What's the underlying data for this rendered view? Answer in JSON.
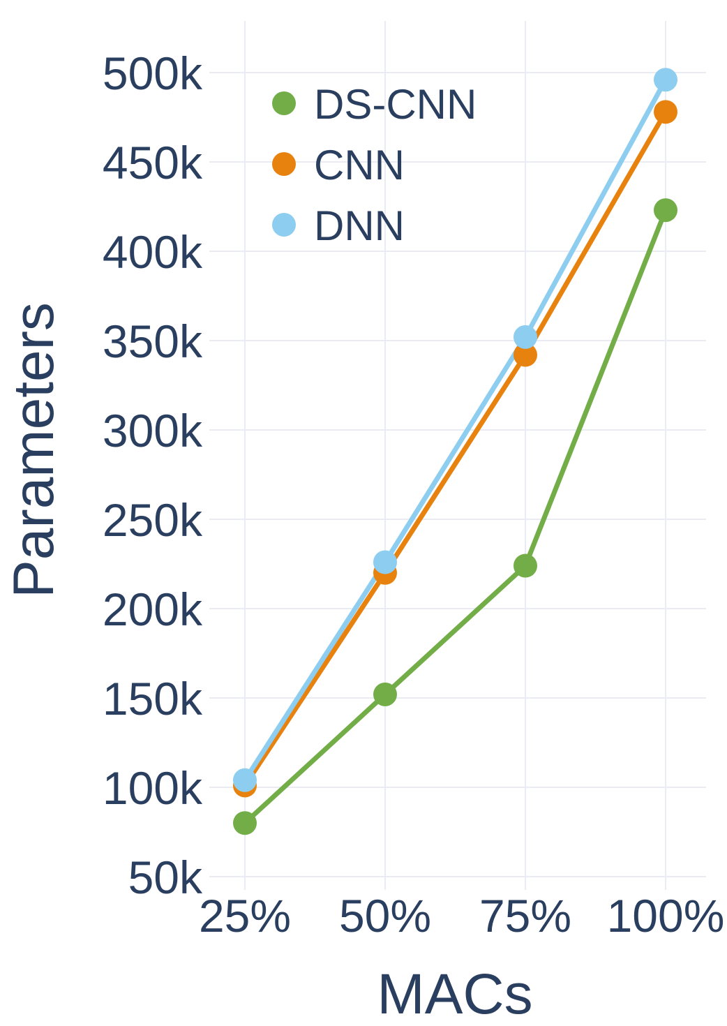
{
  "chart_data": {
    "type": "line",
    "categories": [
      "25%",
      "50%",
      "75%",
      "100%"
    ],
    "xlabel": "MACs",
    "ylabel": "Parameters",
    "ylim": [
      50000,
      500000
    ],
    "yticks": [
      {
        "value": 50000,
        "label": "50k"
      },
      {
        "value": 100000,
        "label": "100k"
      },
      {
        "value": 150000,
        "label": "150k"
      },
      {
        "value": 200000,
        "label": "200k"
      },
      {
        "value": 250000,
        "label": "250k"
      },
      {
        "value": 300000,
        "label": "300k"
      },
      {
        "value": 350000,
        "label": "350k"
      },
      {
        "value": 400000,
        "label": "400k"
      },
      {
        "value": 450000,
        "label": "450k"
      },
      {
        "value": 500000,
        "label": "500k"
      }
    ],
    "grid": true,
    "legend_position": "top-left",
    "series": [
      {
        "name": "DS-CNN",
        "color": "#72ad48",
        "values": [
          80000,
          152000,
          224000,
          423000
        ]
      },
      {
        "name": "CNN",
        "color": "#e8820f",
        "values": [
          101000,
          220000,
          342000,
          478000
        ]
      },
      {
        "name": "DNN",
        "color": "#8ccdf0",
        "values": [
          104000,
          226000,
          352000,
          496000
        ]
      }
    ]
  }
}
